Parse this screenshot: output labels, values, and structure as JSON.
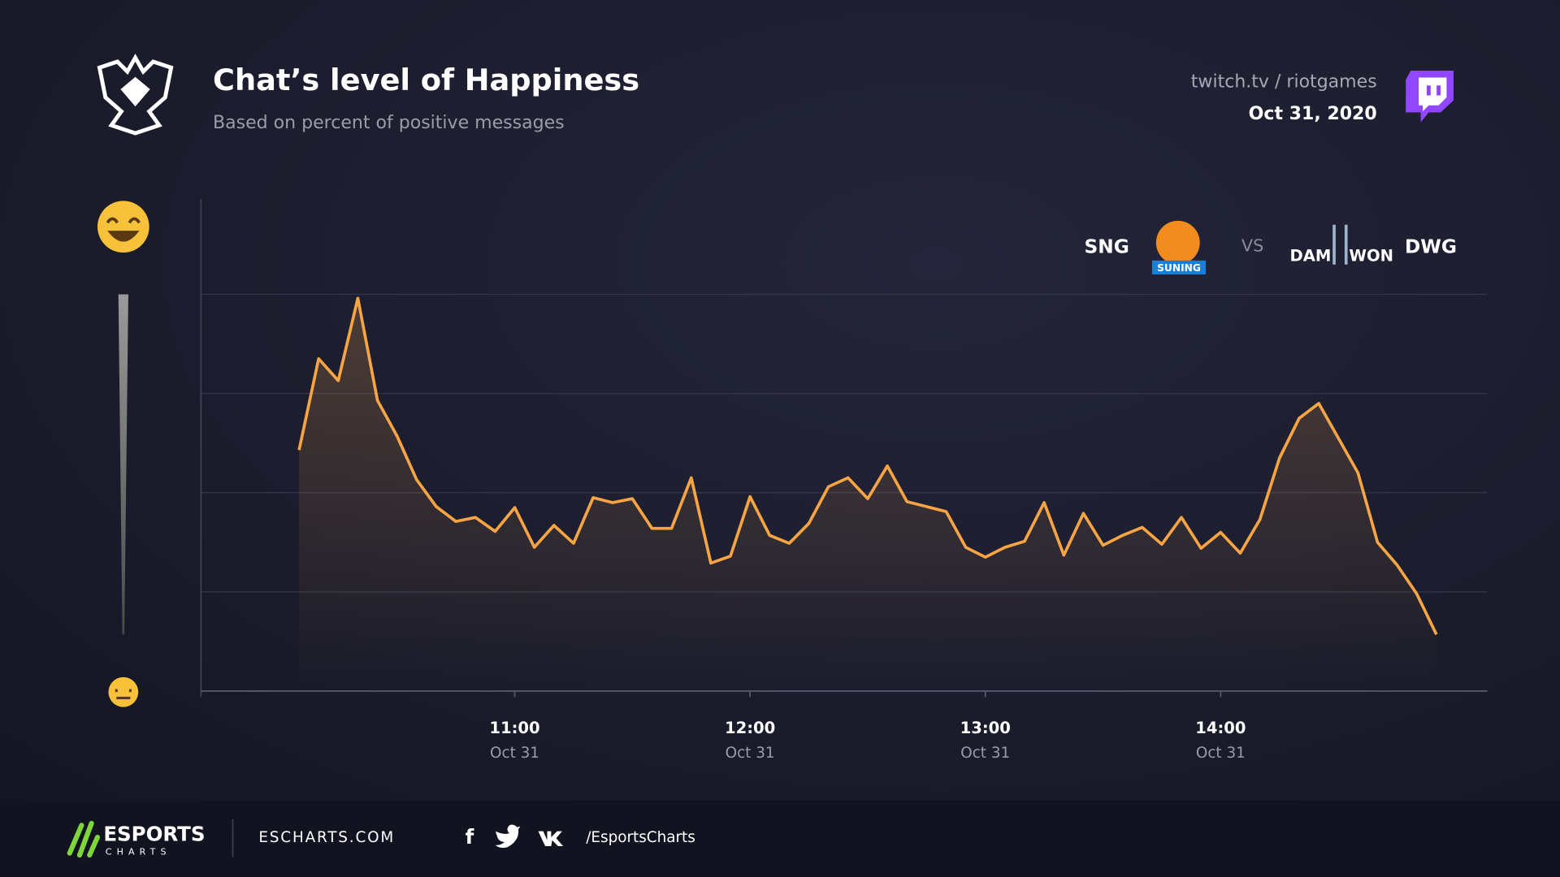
{
  "chart_data": {
    "type": "line",
    "title": "Chat’s level of Happiness",
    "subtitle": "Based on percent of positive messages",
    "source": "twitch.tv / riotgames",
    "date": "Oct 31, 2020",
    "team_left": "SNG",
    "team_left_logo": "SUNING",
    "versus": "VS",
    "team_right_logo": [
      "DAM",
      "WON"
    ],
    "team_right": "DWG",
    "x": [
      "10:05",
      "10:10",
      "10:15",
      "10:20",
      "10:25",
      "10:30",
      "10:35",
      "10:40",
      "10:45",
      "10:50",
      "10:55",
      "11:00",
      "11:05",
      "11:10",
      "11:15",
      "11:20",
      "11:25",
      "11:30",
      "11:35",
      "11:40",
      "11:45",
      "11:50",
      "11:55",
      "12:00",
      "12:05",
      "12:10",
      "12:15",
      "12:20",
      "12:25",
      "12:30",
      "12:35",
      "12:40",
      "12:45",
      "12:50",
      "12:55",
      "13:00",
      "13:05",
      "13:10",
      "13:15",
      "13:20",
      "13:25",
      "13:30",
      "13:35",
      "13:40",
      "13:45",
      "13:50",
      "13:55",
      "14:00",
      "14:05",
      "14:10",
      "14:15",
      "14:20",
      "14:25",
      "14:30",
      "14:35",
      "14:40",
      "14:45",
      "14:50",
      "14:55"
    ],
    "values": [
      2.43,
      3.35,
      3.13,
      3.96,
      2.93,
      2.57,
      2.13,
      1.86,
      1.71,
      1.75,
      1.61,
      1.85,
      1.45,
      1.67,
      1.49,
      1.95,
      1.9,
      1.94,
      1.64,
      1.64,
      2.15,
      1.29,
      1.36,
      1.96,
      1.57,
      1.49,
      1.69,
      2.06,
      2.15,
      1.94,
      2.27,
      1.91,
      1.86,
      1.81,
      1.45,
      1.35,
      1.45,
      1.51,
      1.9,
      1.37,
      1.79,
      1.47,
      1.57,
      1.65,
      1.48,
      1.75,
      1.44,
      1.6,
      1.39,
      1.73,
      2.35,
      2.75,
      2.9,
      2.55,
      2.2,
      1.5,
      1.27,
      0.98,
      0.57
    ],
    "color": "#f7a544",
    "xlim": [
      "09:40",
      "15:08"
    ],
    "xticks": [
      "11:00",
      "12:00",
      "13:00",
      "14:00"
    ],
    "xtick_dates": [
      "Oct 31",
      "Oct 31",
      "Oct 31",
      "Oct 31"
    ],
    "ylim": [
      0,
      4
    ],
    "yticks": [
      1,
      2,
      3,
      4
    ],
    "grid": true,
    "footer": {
      "brand": "ESPORTS",
      "brand_sub": "CHARTS",
      "site": "ESCHARTS.COM",
      "social": "/EsportsCharts"
    }
  }
}
